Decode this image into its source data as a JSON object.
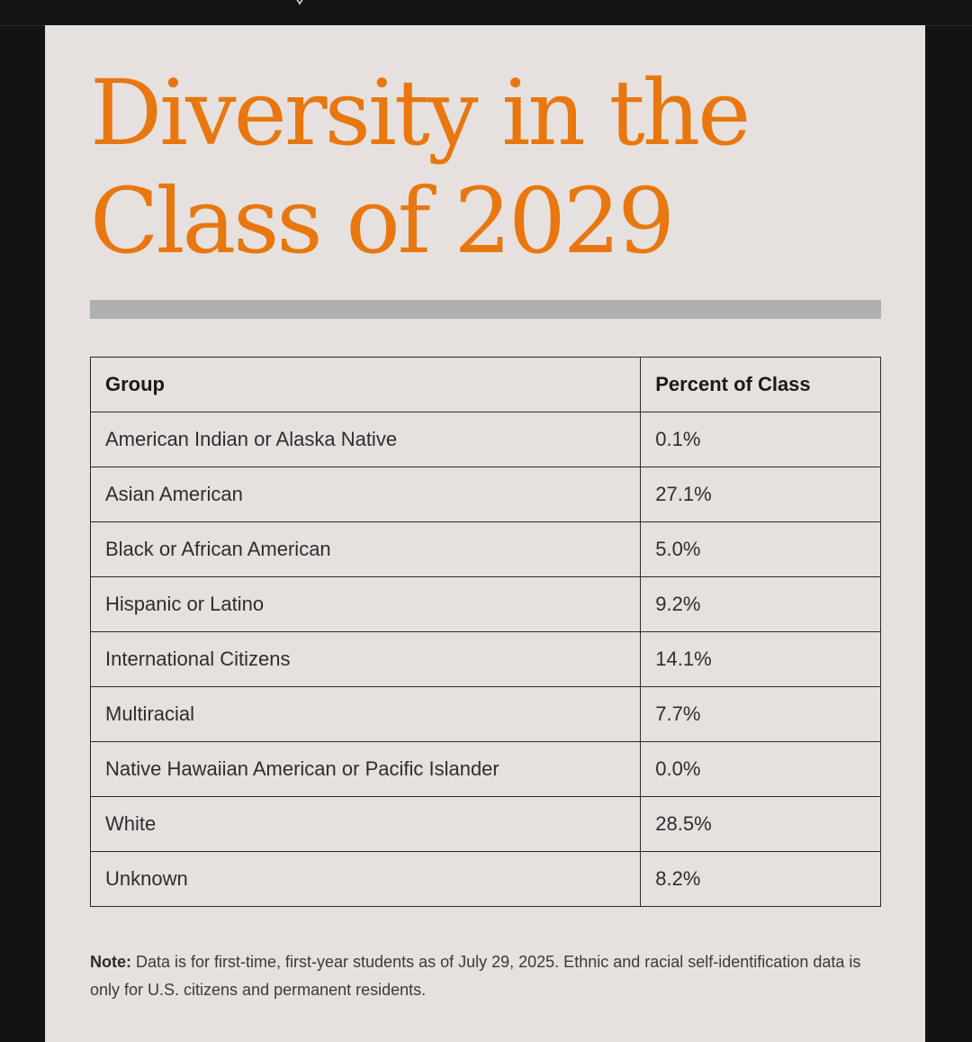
{
  "title_line1": "Diversity in the",
  "title_line2": "Class of 2029",
  "colors": {
    "title": "#e8770f",
    "card_background": "#e6e1de",
    "page_background": "#131313",
    "divider": "#b1b0b0"
  },
  "icons": [
    "chevron-down-icon"
  ],
  "table": {
    "headers": [
      "Group",
      "Percent of Class"
    ],
    "rows": [
      {
        "group": "American Indian or Alaska Native",
        "percent": "0.1%"
      },
      {
        "group": "Asian American",
        "percent": "27.1%"
      },
      {
        "group": "Black or African American",
        "percent": "5.0%"
      },
      {
        "group": "Hispanic or Latino",
        "percent": "9.2%"
      },
      {
        "group": "International Citizens",
        "percent": "14.1%"
      },
      {
        "group": "Multiracial",
        "percent": "7.7%"
      },
      {
        "group": "Native Hawaiian American or Pacific Islander",
        "percent": "0.0%"
      },
      {
        "group": "White",
        "percent": "28.5%"
      },
      {
        "group": "Unknown",
        "percent": "8.2%"
      }
    ]
  },
  "note": {
    "label": "Note:",
    "text": " Data is for first-time, first-year students as of July 29, 2025. Ethnic and racial self-identification data is only for U.S. citizens and permanent residents."
  }
}
